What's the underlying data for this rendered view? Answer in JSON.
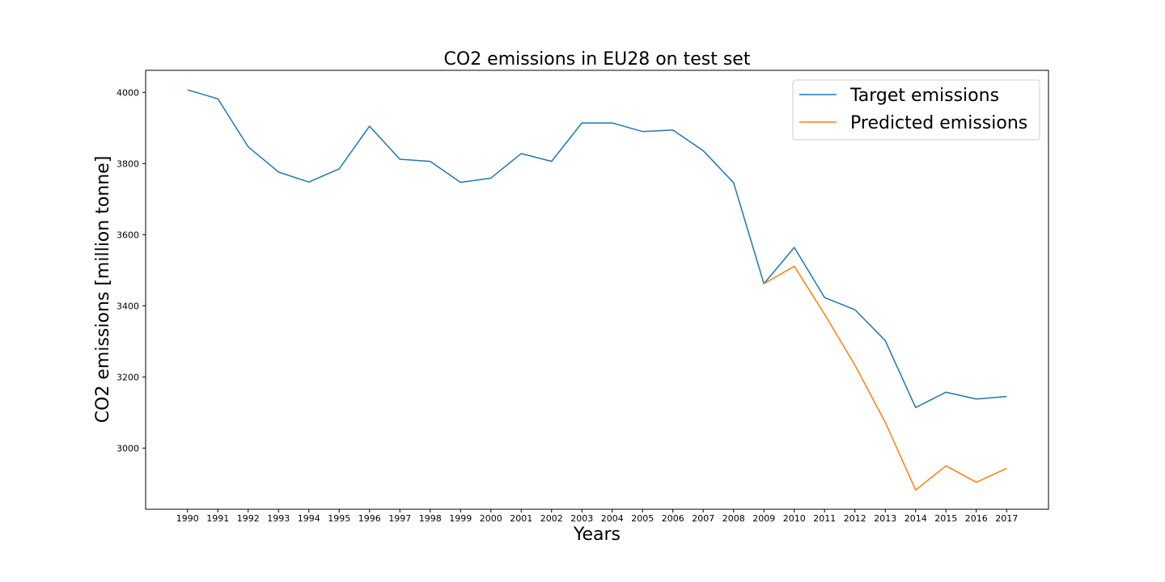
{
  "chart_data": {
    "type": "line",
    "title": "CO2 emissions in EU28 on test set",
    "xlabel": "Years",
    "ylabel": "CO2 emissions [million tonne]",
    "x": [
      1990,
      1991,
      1992,
      1993,
      1994,
      1995,
      1996,
      1997,
      1998,
      1999,
      2000,
      2001,
      2002,
      2003,
      2004,
      2005,
      2006,
      2007,
      2008,
      2009,
      2010,
      2011,
      2012,
      2013,
      2014,
      2015,
      2016,
      2017
    ],
    "xlim": [
      1988.62,
      2018.38
    ],
    "ylim": [
      2828,
      4062
    ],
    "yticks": [
      3000,
      3200,
      3400,
      3600,
      3800,
      4000
    ],
    "grid": false,
    "legend_position": "upper right",
    "series": [
      {
        "name": "Target emissions",
        "color": "#1f77b4",
        "x": [
          1990,
          1991,
          1992,
          1993,
          1994,
          1995,
          1996,
          1997,
          1998,
          1999,
          2000,
          2001,
          2002,
          2003,
          2004,
          2005,
          2006,
          2007,
          2008,
          2009,
          2010,
          2011,
          2012,
          2013,
          2014,
          2015,
          2016,
          2017
        ],
        "values": [
          4007,
          3982,
          3847,
          3776,
          3748,
          3785,
          3905,
          3812,
          3806,
          3747,
          3759,
          3828,
          3806,
          3914,
          3914,
          3890,
          3894,
          3836,
          3746,
          3462,
          3564,
          3423,
          3389,
          3302,
          3114,
          3157,
          3138,
          3145
        ]
      },
      {
        "name": "Predicted emissions",
        "color": "#ff7f0e",
        "x": [
          2009,
          2010,
          2011,
          2012,
          2013,
          2014,
          2015,
          2016,
          2017
        ],
        "values": [
          3462,
          3511,
          3376,
          3233,
          3072,
          2882,
          2950,
          2904,
          2943
        ]
      }
    ]
  }
}
